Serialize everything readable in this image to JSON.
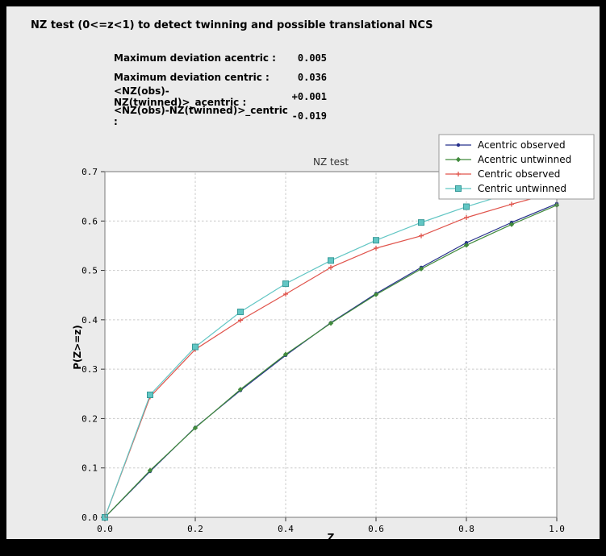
{
  "header": {
    "title": "NZ test (0<=z<1) to detect twinning and possible translational NCS"
  },
  "stats": {
    "rows": [
      {
        "label": "Maximum deviation acentric :",
        "value": "0.005"
      },
      {
        "label": "Maximum deviation centric :",
        "value": "0.036"
      },
      {
        "label": "<NZ(obs)-NZ(twinned)>_acentric :",
        "value": "+0.001"
      },
      {
        "label": "<NZ(obs)-NZ(twinned)>_centric :",
        "value": "-0.019"
      }
    ]
  },
  "chart_data": {
    "type": "line",
    "title": "NZ test",
    "xlabel": "Z",
    "ylabel": "P(Z>=z)",
    "xlim": [
      0.0,
      1.0
    ],
    "ylim": [
      0.0,
      0.7
    ],
    "xticks": [
      0.0,
      0.2,
      0.4,
      0.6,
      0.8,
      1.0
    ],
    "yticks": [
      0.0,
      0.1,
      0.2,
      0.3,
      0.4,
      0.5,
      0.6,
      0.7
    ],
    "grid": "dashed",
    "legend_position": "top-right",
    "plot_bg": "#ffffff",
    "x": [
      0.0,
      0.1,
      0.2,
      0.3,
      0.4,
      0.5,
      0.6,
      0.7,
      0.8,
      0.9,
      1.0
    ],
    "series": [
      {
        "name": "Acentric observed",
        "color": "#26308c",
        "edge": "#26308c",
        "marker": "dot",
        "values": [
          0.0,
          0.093,
          0.182,
          0.257,
          0.328,
          0.394,
          0.453,
          0.506,
          0.556,
          0.597,
          0.635
        ]
      },
      {
        "name": "Acentric untwinned",
        "color": "#418a3c",
        "edge": "#2e6b2a",
        "marker": "diamond",
        "values": [
          0.0,
          0.095,
          0.181,
          0.259,
          0.33,
          0.393,
          0.451,
          0.503,
          0.551,
          0.593,
          0.632
        ]
      },
      {
        "name": "Centric observed",
        "color": "#e0544c",
        "edge": "#e0544c",
        "marker": "plus",
        "values": [
          0.0,
          0.244,
          0.34,
          0.399,
          0.452,
          0.506,
          0.545,
          0.57,
          0.607,
          0.634,
          0.659
        ]
      },
      {
        "name": "Centric untwinned",
        "color": "#62c6c4",
        "edge": "#379a98",
        "marker": "square",
        "values": [
          0.0,
          0.248,
          0.345,
          0.416,
          0.473,
          0.52,
          0.561,
          0.597,
          0.629,
          0.657,
          0.683
        ]
      }
    ]
  }
}
